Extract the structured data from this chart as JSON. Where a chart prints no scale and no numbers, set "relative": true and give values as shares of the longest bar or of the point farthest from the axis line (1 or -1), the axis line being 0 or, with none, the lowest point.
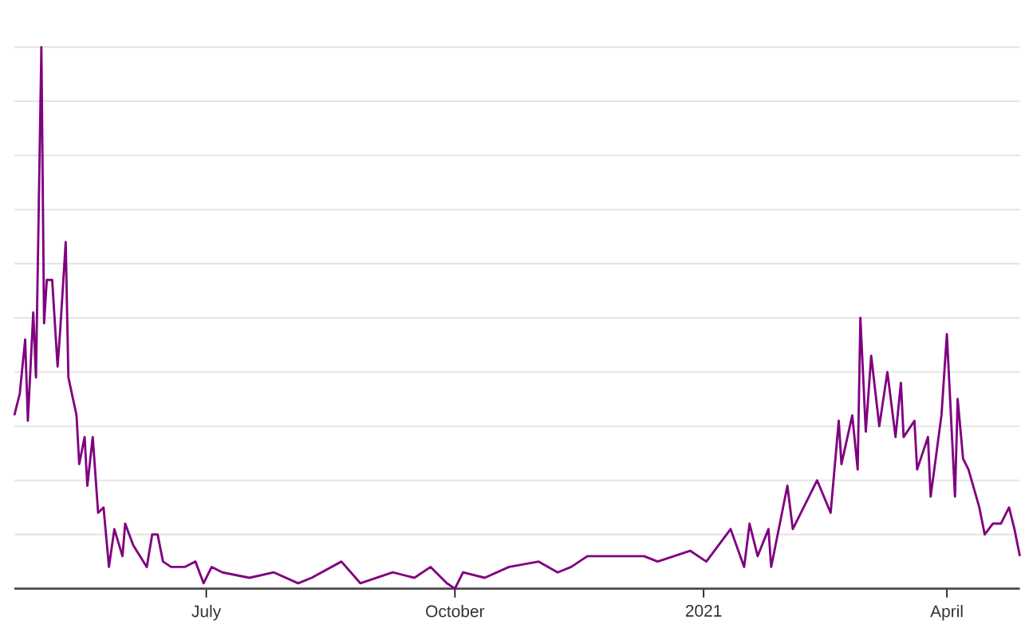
{
  "chart_data": {
    "type": "line",
    "relative": true,
    "grid": "y",
    "xlim": [
      "2020-04-21",
      "2021-04-28"
    ],
    "xticks": [
      {
        "value": "2020-07-01",
        "label": "July"
      },
      {
        "value": "2020-10-01",
        "label": "October"
      },
      {
        "value": "2021-01-01",
        "label": "2021"
      },
      {
        "value": "2021-04-01",
        "label": "April"
      }
    ],
    "x": [
      "2020-04-21",
      "2020-04-23",
      "2020-04-25",
      "2020-04-26",
      "2020-04-28",
      "2020-04-29",
      "2020-05-01",
      "2020-05-02",
      "2020-05-03",
      "2020-05-05",
      "2020-05-07",
      "2020-05-08",
      "2020-05-10",
      "2020-05-11",
      "2020-05-14",
      "2020-05-15",
      "2020-05-17",
      "2020-05-18",
      "2020-05-20",
      "2020-05-22",
      "2020-05-24",
      "2020-05-26",
      "2020-05-28",
      "2020-05-31",
      "2020-06-01",
      "2020-06-04",
      "2020-06-09",
      "2020-06-11",
      "2020-06-13",
      "2020-06-15",
      "2020-06-18",
      "2020-06-23",
      "2020-06-27",
      "2020-06-30",
      "2020-07-03",
      "2020-07-07",
      "2020-07-17",
      "2020-07-26",
      "2020-08-04",
      "2020-08-09",
      "2020-08-20",
      "2020-08-27",
      "2020-09-08",
      "2020-09-16",
      "2020-09-22",
      "2020-09-28",
      "2020-10-01",
      "2020-10-04",
      "2020-10-12",
      "2020-10-21",
      "2020-11-01",
      "2020-11-08",
      "2020-11-13",
      "2020-11-19",
      "2020-11-30",
      "2020-12-10",
      "2020-12-15",
      "2020-12-21",
      "2020-12-27",
      "2021-01-02",
      "2021-01-05",
      "2021-01-11",
      "2021-01-16",
      "2021-01-18",
      "2021-01-21",
      "2021-01-25",
      "2021-01-26",
      "2021-02-01",
      "2021-02-03",
      "2021-02-09",
      "2021-02-12",
      "2021-02-17",
      "2021-02-20",
      "2021-02-21",
      "2021-02-25",
      "2021-02-27",
      "2021-02-28",
      "2021-03-02",
      "2021-03-04",
      "2021-03-07",
      "2021-03-10",
      "2021-03-13",
      "2021-03-15",
      "2021-03-16",
      "2021-03-20",
      "2021-03-21",
      "2021-03-25",
      "2021-03-26",
      "2021-03-30",
      "2021-04-01",
      "2021-04-04",
      "2021-04-05",
      "2021-04-07",
      "2021-04-09",
      "2021-04-13",
      "2021-04-15",
      "2021-04-18",
      "2021-04-21",
      "2021-04-24",
      "2021-04-26",
      "2021-04-28"
    ],
    "series": [
      {
        "color": "#800080",
        "values": [
          0.32,
          0.36,
          0.46,
          0.31,
          0.51,
          0.39,
          1,
          0.49,
          0.57,
          0.57,
          0.41,
          0.48,
          0.64,
          0.39,
          0.32,
          0.23,
          0.28,
          0.19,
          0.28,
          0.14,
          0.15,
          0.04,
          0.11,
          0.06,
          0.12,
          0.08,
          0.04,
          0.1,
          0.1,
          0.05,
          0.04,
          0.04,
          0.05,
          0.01,
          0.04,
          0.03,
          0.02,
          0.03,
          0.01,
          0.02,
          0.05,
          0.01,
          0.03,
          0.02,
          0.04,
          0.01,
          0,
          0.03,
          0.02,
          0.04,
          0.05,
          0.03,
          0.04,
          0.06,
          0.06,
          0.06,
          0.05,
          0.06,
          0.07,
          0.05,
          0.07,
          0.11,
          0.04,
          0.12,
          0.06,
          0.11,
          0.04,
          0.19,
          0.11,
          0.17,
          0.2,
          0.14,
          0.31,
          0.23,
          0.32,
          0.22,
          0.5,
          0.29,
          0.43,
          0.3,
          0.4,
          0.28,
          0.38,
          0.28,
          0.31,
          0.22,
          0.28,
          0.17,
          0.32,
          0.47,
          0.17,
          0.35,
          0.24,
          0.22,
          0.15,
          0.1,
          0.12,
          0.12,
          0.15,
          0.11,
          0.06
        ]
      }
    ]
  }
}
